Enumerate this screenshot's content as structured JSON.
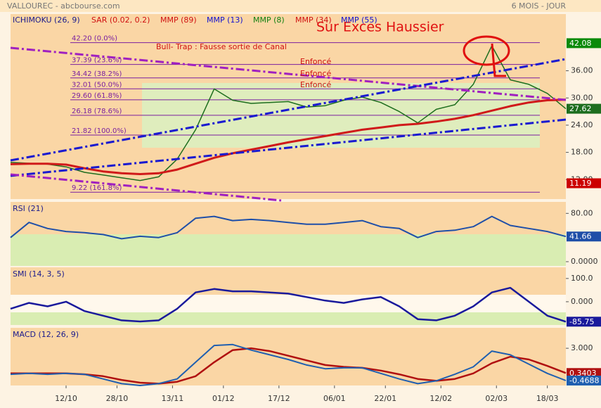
{
  "header": {
    "title": "VALLOUREC - abcbourse.com",
    "period": "6 MOIS - JOUR"
  },
  "indicators": [
    {
      "label": "ICHIMOKU (26, 9)",
      "color": "#1a1a8c"
    },
    {
      "label": "SAR (0.02, 0.2)",
      "color": "#d01010"
    },
    {
      "label": "MMP (89)",
      "color": "#d01010"
    },
    {
      "label": "MMP (13)",
      "color": "#1010d0"
    },
    {
      "label": "MMP (8)",
      "color": "#108010"
    },
    {
      "label": "MMP (34)",
      "color": "#d01010"
    },
    {
      "label": "MMP (55)",
      "color": "#1010d0"
    }
  ],
  "annotations": {
    "headline": "Sur Exces Haussier",
    "trap": "Bull- Trap : Fausse sortie de Canal",
    "broken": [
      "Enfoncé",
      "Enfoncé",
      "Enfoncé"
    ]
  },
  "chart_data": [
    {
      "type": "line",
      "ylim": [
        7.7,
        48.5
      ],
      "xlim": [
        0,
        120
      ],
      "x": [
        0,
        4,
        8,
        12,
        16,
        20,
        24,
        28,
        32,
        36,
        40,
        44,
        48,
        52,
        56,
        60,
        64,
        68,
        72,
        76,
        80,
        84,
        88,
        92,
        96,
        100,
        104,
        108,
        112,
        116,
        120
      ],
      "yticks": [
        {
          "value": 36,
          "label": "36.00"
        },
        {
          "value": 30,
          "label": "30.00"
        },
        {
          "value": 24,
          "label": "24.00"
        },
        {
          "value": 18,
          "label": "18.00"
        },
        {
          "value": 12,
          "label": "12.00"
        }
      ],
      "levels": [
        {
          "value": 42.2,
          "label": "42.20 (0.0%)"
        },
        {
          "value": 37.39,
          "label": "37.39 (23.6%)"
        },
        {
          "value": 34.42,
          "label": "34.42 (38.2%)"
        },
        {
          "value": 32.01,
          "label": "32.01 (50.0%)"
        },
        {
          "value": 29.6,
          "label": "29.60 (61.8%)"
        },
        {
          "value": 26.18,
          "label": "26.18 (78.6%)"
        },
        {
          "value": 21.82,
          "label": "21.82 (100.0%)"
        },
        {
          "value": 9.22,
          "label": "9.22 (161.8%)"
        }
      ],
      "level_color": "#7a1fa0",
      "price_tags": [
        {
          "value": 42.08,
          "color": "#0a8a0a"
        },
        {
          "value": 11.19,
          "color": "#cc0000"
        }
      ],
      "series": [
        {
          "color": "#1e6e1e",
          "tag": true,
          "width": 1.5,
          "values": [
            15.8,
            15.6,
            15.4,
            14.8,
            13.6,
            13,
            12.4,
            11.8,
            12.6,
            16.5,
            23,
            32,
            29.5,
            28.8,
            29,
            29.2,
            28,
            28.3,
            29.5,
            30.2,
            29,
            27,
            24.5,
            27.5,
            28.5,
            33,
            41.5,
            34,
            33,
            31,
            27.62
          ]
        },
        {
          "color": "#d01a1a",
          "tag": false,
          "width": 3,
          "values": [
            15.4,
            15.5,
            15.5,
            15.3,
            14.5,
            13.8,
            13.4,
            13.2,
            13.4,
            14.2,
            15.5,
            16.8,
            17.8,
            18.6,
            19.4,
            20.2,
            20.9,
            21.6,
            22.3,
            23,
            23.5,
            24,
            24.3,
            24.8,
            25.4,
            26.2,
            27.2,
            28.2,
            29,
            29.5,
            29.6
          ]
        }
      ]
    },
    {
      "type": "line",
      "title": "RSI (21)",
      "ylim": [
        -7,
        99
      ],
      "xlim": [
        0,
        120
      ],
      "x": [
        0,
        4,
        8,
        12,
        16,
        20,
        24,
        28,
        32,
        36,
        40,
        44,
        48,
        52,
        56,
        60,
        64,
        68,
        72,
        76,
        80,
        84,
        88,
        92,
        96,
        100,
        104,
        108,
        112,
        116,
        120
      ],
      "yticks": [
        {
          "value": 80,
          "label": "80.00"
        },
        {
          "value": 0,
          "label": "0.0000"
        }
      ],
      "series": [
        {
          "color": "#1f4fa8",
          "tag": true,
          "width": 2,
          "values": [
            40,
            65,
            55,
            50,
            48,
            45,
            38,
            42,
            40,
            48,
            72,
            75,
            68,
            70,
            68,
            65,
            62,
            62,
            65,
            68,
            58,
            55,
            40,
            50,
            52,
            58,
            75,
            60,
            55,
            50,
            41.66
          ]
        }
      ]
    },
    {
      "type": "line",
      "title": "SMI (14, 3, 5)",
      "ylim": [
        -100,
        148
      ],
      "xlim": [
        0,
        120
      ],
      "x": [
        0,
        4,
        8,
        12,
        16,
        20,
        24,
        28,
        32,
        36,
        40,
        44,
        48,
        52,
        56,
        60,
        64,
        68,
        72,
        76,
        80,
        84,
        88,
        92,
        96,
        100,
        104,
        108,
        112,
        116,
        120
      ],
      "yticks": [
        {
          "value": 100,
          "label": "100.0"
        },
        {
          "value": 0,
          "label": "0.000"
        }
      ],
      "series": [
        {
          "color": "#1a1a9c",
          "tag": true,
          "width": 2.5,
          "values": [
            -30,
            -5,
            -20,
            0,
            -40,
            -60,
            -80,
            -85,
            -80,
            -30,
            40,
            55,
            45,
            45,
            40,
            35,
            20,
            5,
            -5,
            10,
            20,
            -20,
            -75,
            -80,
            -60,
            -20,
            40,
            60,
            0,
            -60,
            -85.75
          ]
        }
      ]
    },
    {
      "type": "line",
      "title": "MACD (12, 26, 9)",
      "ylim": [
        -1,
        5.2
      ],
      "xlim": [
        0,
        120
      ],
      "x": [
        0,
        4,
        8,
        12,
        16,
        20,
        24,
        28,
        32,
        36,
        40,
        44,
        48,
        52,
        56,
        60,
        64,
        68,
        72,
        76,
        80,
        84,
        88,
        92,
        96,
        100,
        104,
        108,
        112,
        116,
        120
      ],
      "yticks": [
        {
          "value": 3,
          "label": "3.000"
        }
      ],
      "xticks": [
        {
          "value": 12,
          "label": "12/10"
        },
        {
          "value": 23,
          "label": "28/10"
        },
        {
          "value": 35,
          "label": "13/11"
        },
        {
          "value": 46,
          "label": "01/12"
        },
        {
          "value": 58,
          "label": "17/12"
        },
        {
          "value": 70,
          "label": "06/01"
        },
        {
          "value": 81,
          "label": "22/01"
        },
        {
          "value": 93,
          "label": "12/02"
        },
        {
          "value": 105,
          "label": "02/03"
        },
        {
          "value": 116,
          "label": "18/03"
        }
      ],
      "series": [
        {
          "color": "#b01010",
          "tag": true,
          "width": 2.5,
          "values": [
            0.3,
            0.3,
            0.3,
            0.3,
            0.2,
            0,
            -0.4,
            -0.7,
            -0.8,
            -0.6,
            0,
            1.5,
            2.8,
            3,
            2.7,
            2.2,
            1.7,
            1.2,
            1,
            0.9,
            0.6,
            0.2,
            -0.3,
            -0.5,
            -0.3,
            0.3,
            1.4,
            2.1,
            1.8,
            1.1,
            0.3403
          ]
        },
        {
          "color": "#1f5fb0",
          "tag": true,
          "width": 2,
          "values": [
            0.2,
            0.3,
            0.2,
            0.3,
            0.2,
            -0.3,
            -0.8,
            -1,
            -0.8,
            -0.3,
            1.5,
            3.3,
            3.4,
            2.8,
            2.3,
            1.8,
            1.2,
            0.8,
            0.9,
            0.9,
            0.3,
            -0.3,
            -0.8,
            -0.5,
            0.2,
            1,
            2.7,
            2.3,
            1.3,
            0.3,
            -0.4688
          ]
        }
      ]
    }
  ]
}
